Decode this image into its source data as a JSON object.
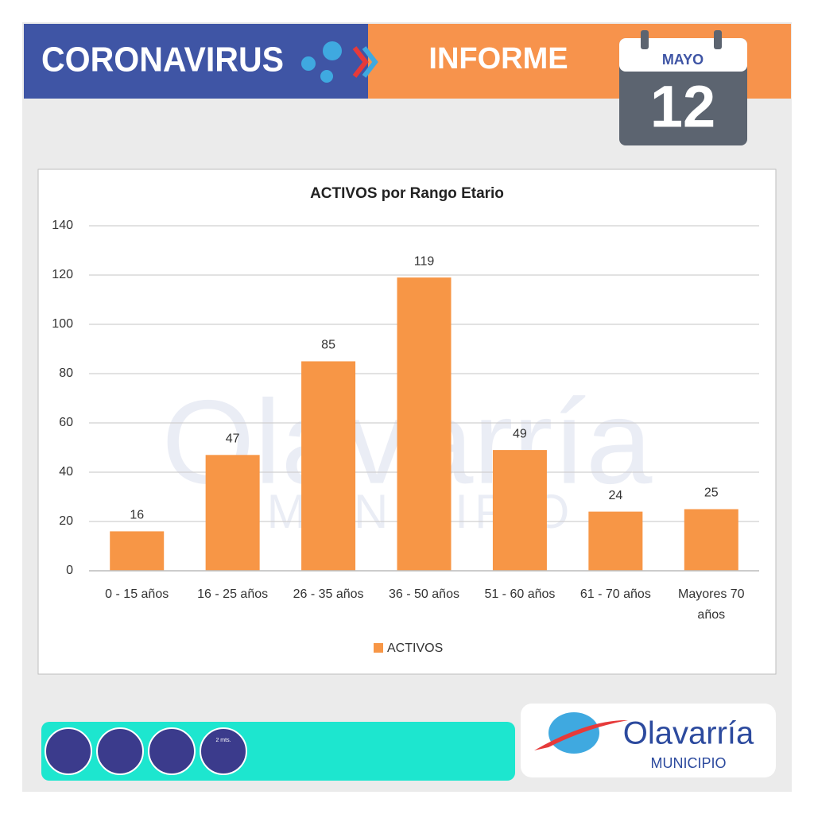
{
  "header": {
    "title": "CORONAVIRUS",
    "subtitle": "INFORME",
    "month": "MAYO",
    "day": "12"
  },
  "chart_data": {
    "type": "bar",
    "title": "ACTIVOS por Rango Etario",
    "categories": [
      "0 - 15 años",
      "16 - 25 años",
      "26 - 35 años",
      "36 - 50 años",
      "51 - 60 años",
      "61 - 70 años",
      "Mayores 70 años"
    ],
    "series": [
      {
        "name": "ACTIVOS",
        "color": "#f79646",
        "values": [
          16,
          47,
          85,
          119,
          49,
          24,
          25
        ]
      }
    ],
    "ylim": [
      0,
      140
    ],
    "yticks": [
      0,
      20,
      40,
      60,
      80,
      100,
      120,
      140
    ],
    "grid": true,
    "legend": "bottom",
    "data_labels": true
  },
  "footer": {
    "icon_label": "2 mts.",
    "logo_name": "Olavarría",
    "logo_sub": "MUNICIPIO"
  }
}
